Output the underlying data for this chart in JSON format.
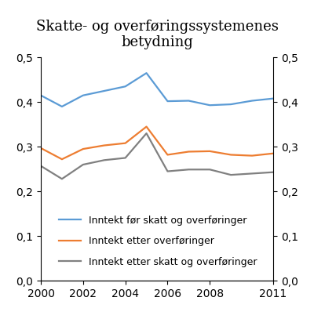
{
  "title": "Skatte- og overføringssystemenes\nbetydning",
  "years": [
    2000,
    2001,
    2002,
    2003,
    2004,
    2005,
    2006,
    2007,
    2008,
    2009,
    2010,
    2011
  ],
  "series_order": [
    "before_tax",
    "after_transfers",
    "after_tax"
  ],
  "series": {
    "before_tax": {
      "label": "Inntekt før skatt og overføringer",
      "color": "#5b9bd5",
      "values": [
        0.415,
        0.39,
        0.415,
        0.425,
        0.435,
        0.465,
        0.402,
        0.403,
        0.393,
        0.395,
        0.403,
        0.408
      ]
    },
    "after_transfers": {
      "label": "Inntekt etter overføringer",
      "color": "#ed7d31",
      "values": [
        0.297,
        0.272,
        0.295,
        0.303,
        0.308,
        0.345,
        0.282,
        0.289,
        0.29,
        0.282,
        0.28,
        0.285
      ]
    },
    "after_tax": {
      "label": "Inntekt etter skatt og overføringer",
      "color": "#808080",
      "values": [
        0.257,
        0.228,
        0.26,
        0.27,
        0.275,
        0.33,
        0.245,
        0.249,
        0.249,
        0.237,
        0.24,
        0.243
      ]
    }
  },
  "ylim": [
    0.0,
    0.5
  ],
  "yticks": [
    0.0,
    0.1,
    0.2,
    0.3,
    0.4,
    0.5
  ],
  "xticks": [
    2000,
    2002,
    2004,
    2006,
    2008,
    2011
  ],
  "background_color": "#ffffff",
  "title_fontsize": 13,
  "legend_fontsize": 9.0,
  "tick_fontsize": 10,
  "linewidth": 1.6
}
